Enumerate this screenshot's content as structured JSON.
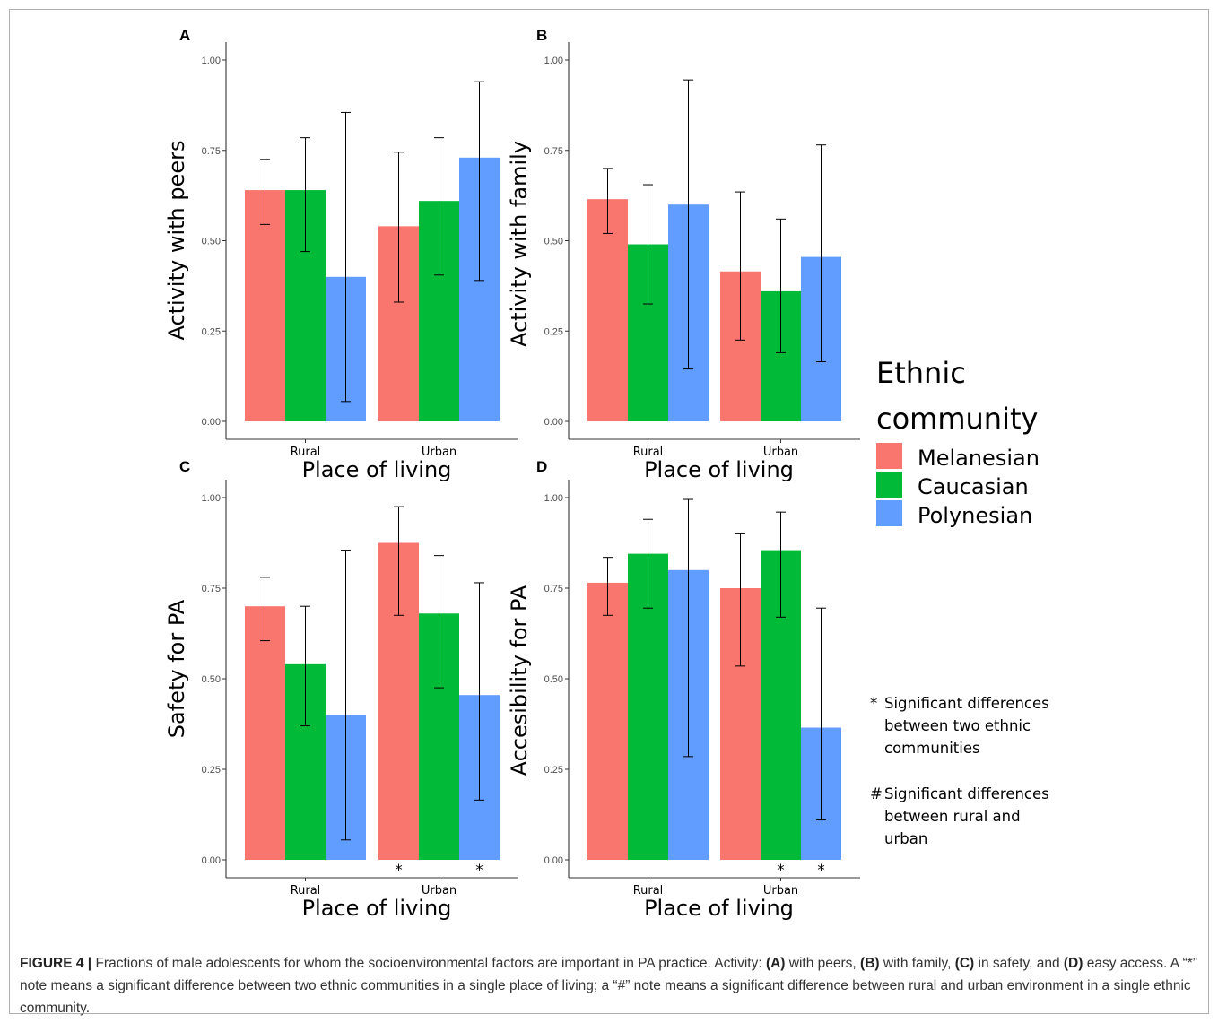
{
  "chart_data": [
    {
      "panel": "A",
      "type": "bar",
      "ylabel": "Activity with peers",
      "xlabel": "Place of living",
      "categories": [
        "Rural",
        "Urban"
      ],
      "ylim": [
        0,
        1
      ],
      "yticks": [
        "0.00",
        "0.25",
        "0.50",
        "0.75",
        "1.00"
      ],
      "series": [
        {
          "name": "Melanesian",
          "values": [
            0.64,
            0.54
          ],
          "lower": [
            0.545,
            0.33
          ],
          "upper": [
            0.725,
            0.745
          ]
        },
        {
          "name": "Caucasian",
          "values": [
            0.64,
            0.61
          ],
          "lower": [
            0.47,
            0.405
          ],
          "upper": [
            0.785,
            0.785
          ]
        },
        {
          "name": "Polynesian",
          "values": [
            0.4,
            0.73
          ],
          "lower": [
            0.055,
            0.39
          ],
          "upper": [
            0.855,
            0.94
          ]
        }
      ],
      "annotations": []
    },
    {
      "panel": "B",
      "type": "bar",
      "ylabel": "Activity with family",
      "xlabel": "Place of living",
      "categories": [
        "Rural",
        "Urban"
      ],
      "ylim": [
        0,
        1
      ],
      "yticks": [
        "0.00",
        "0.25",
        "0.50",
        "0.75",
        "1.00"
      ],
      "series": [
        {
          "name": "Melanesian",
          "values": [
            0.615,
            0.415
          ],
          "lower": [
            0.52,
            0.225
          ],
          "upper": [
            0.7,
            0.635
          ]
        },
        {
          "name": "Caucasian",
          "values": [
            0.49,
            0.36
          ],
          "lower": [
            0.325,
            0.19
          ],
          "upper": [
            0.655,
            0.56
          ]
        },
        {
          "name": "Polynesian",
          "values": [
            0.6,
            0.455
          ],
          "lower": [
            0.145,
            0.165
          ],
          "upper": [
            0.945,
            0.765
          ]
        }
      ],
      "annotations": []
    },
    {
      "panel": "C",
      "type": "bar",
      "ylabel": "Safety for PA",
      "xlabel": "Place of living",
      "categories": [
        "Rural",
        "Urban"
      ],
      "ylim": [
        0,
        1
      ],
      "yticks": [
        "0.00",
        "0.25",
        "0.50",
        "0.75",
        "1.00"
      ],
      "series": [
        {
          "name": "Melanesian",
          "values": [
            0.7,
            0.875
          ],
          "lower": [
            0.605,
            0.675
          ],
          "upper": [
            0.78,
            0.975
          ]
        },
        {
          "name": "Caucasian",
          "values": [
            0.54,
            0.68
          ],
          "lower": [
            0.37,
            0.475
          ],
          "upper": [
            0.7,
            0.84
          ]
        },
        {
          "name": "Polynesian",
          "values": [
            0.4,
            0.455
          ],
          "lower": [
            0.055,
            0.165
          ],
          "upper": [
            0.855,
            0.765
          ]
        }
      ],
      "annotations": [
        {
          "series": 0,
          "category": 1,
          "text": "*"
        },
        {
          "series": 2,
          "category": 1,
          "text": "*"
        }
      ]
    },
    {
      "panel": "D",
      "type": "bar",
      "ylabel": "Accesibility for PA",
      "xlabel": "Place of living",
      "categories": [
        "Rural",
        "Urban"
      ],
      "ylim": [
        0,
        1
      ],
      "yticks": [
        "0.00",
        "0.25",
        "0.50",
        "0.75",
        "1.00"
      ],
      "series": [
        {
          "name": "Melanesian",
          "values": [
            0.765,
            0.75
          ],
          "lower": [
            0.675,
            0.535
          ],
          "upper": [
            0.835,
            0.9
          ]
        },
        {
          "name": "Caucasian",
          "values": [
            0.845,
            0.855
          ],
          "lower": [
            0.695,
            0.67
          ],
          "upper": [
            0.94,
            0.96
          ]
        },
        {
          "name": "Polynesian",
          "values": [
            0.8,
            0.365
          ],
          "lower": [
            0.285,
            0.11
          ],
          "upper": [
            0.995,
            0.695
          ]
        }
      ],
      "annotations": [
        {
          "series": 1,
          "category": 1,
          "text": "*"
        },
        {
          "series": 2,
          "category": 1,
          "text": "*"
        }
      ]
    }
  ],
  "colors": {
    "Melanesian": "#F8766D",
    "Caucasian": "#00BA38",
    "Polynesian": "#619CFF"
  },
  "legend": {
    "title_line1": "Ethnic",
    "title_line2": "community",
    "items": [
      "Melanesian",
      "Caucasian",
      "Polynesian"
    ]
  },
  "notes": {
    "star_symbol": "*",
    "star_lines": [
      "Significant differences",
      "between two ethnic",
      "communities"
    ],
    "hash_symbol": "#",
    "hash_lines": [
      "Significant differences",
      "between rural and",
      "urban"
    ]
  },
  "caption": {
    "label": "FIGURE 4 |",
    "t1": " Fractions of male adolescents for whom the socioenvironmental factors are important in PA practice. Activity: ",
    "a": "(A)",
    "t2": " with peers, ",
    "b": "(B)",
    "t3": " with family, ",
    "c": "(C)",
    "t4": " in safety, and ",
    "d": "(D)",
    "t5": " easy access. A “*” note means a significant difference between two ethnic communities in a single place of living; a “#” note means a significant difference between rural and urban environment in a single ethnic community."
  }
}
